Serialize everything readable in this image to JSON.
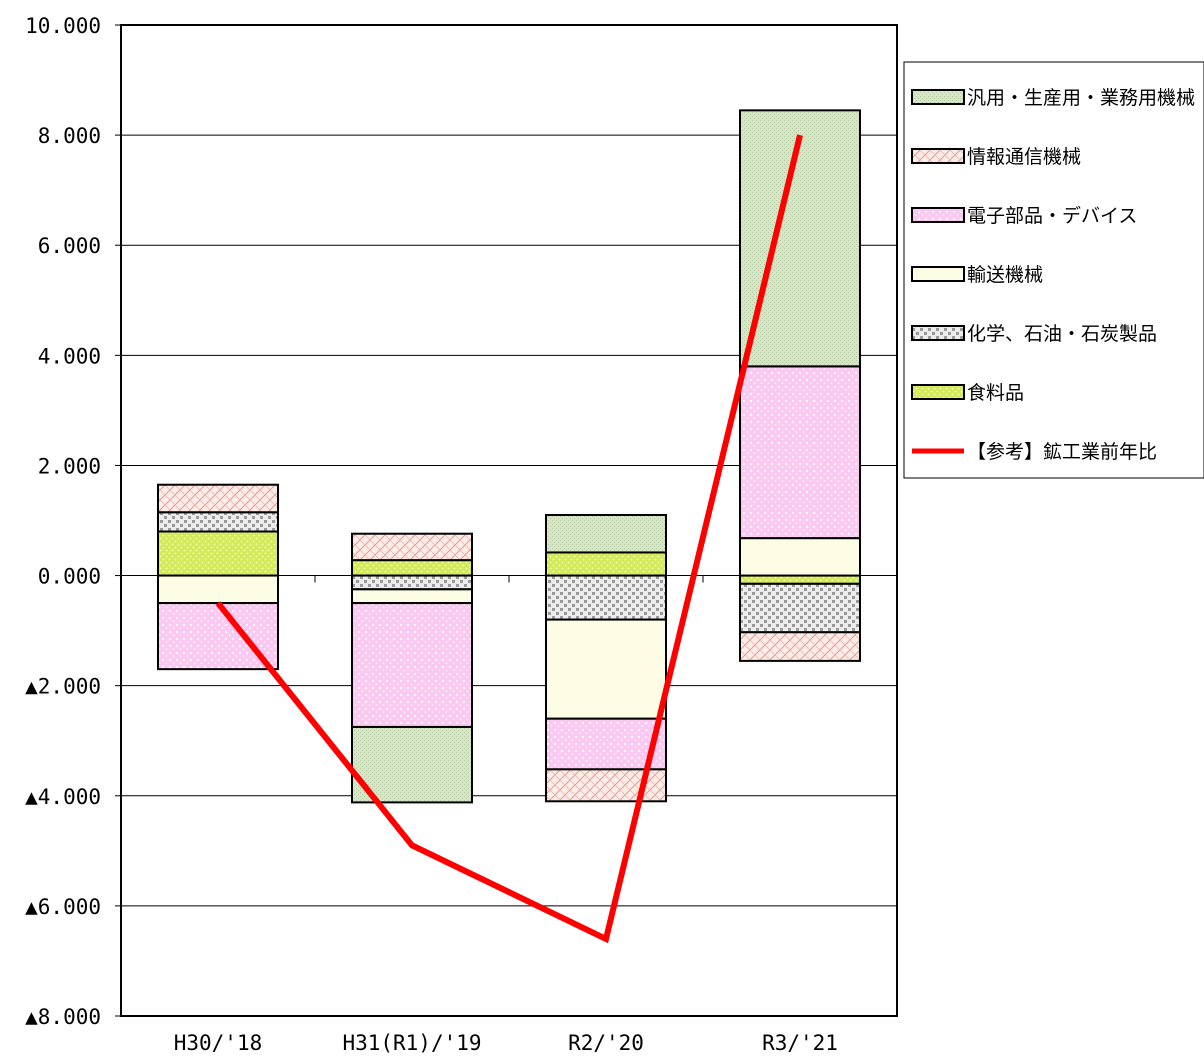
{
  "chart_data": {
    "type": "bar",
    "stacked": true,
    "title": "",
    "xlabel": "",
    "ylabel": "",
    "ylim": [
      -8,
      10
    ],
    "y_ticks": [
      10,
      8,
      6,
      4,
      2,
      0,
      -2,
      -4,
      -6,
      -8
    ],
    "y_tick_labels": [
      "10.000",
      "8.000",
      "6.000",
      "4.000",
      "2.000",
      "0.000",
      "▲2.000",
      "▲4.000",
      "▲6.000",
      "▲8.000"
    ],
    "grid": "horizontal",
    "legend_position": "right",
    "categories": [
      "H30/'18",
      "H31(R1)/'19",
      "R2/'20",
      "R3/'21"
    ],
    "series": [
      {
        "name": "食料品",
        "color": "#d4ea5c",
        "pattern": "dots",
        "values": [
          0.8,
          0.28,
          0.42,
          -0.15
        ]
      },
      {
        "name": "化学、石油・石炭製品",
        "color": "#d9d9d9",
        "pattern": "checker",
        "values": [
          0.35,
          -0.25,
          -0.8,
          -0.88
        ]
      },
      {
        "name": "輸送機械",
        "color": "#fdfde6",
        "pattern": "plain",
        "values": [
          -0.5,
          -0.25,
          -1.8,
          0.68
        ]
      },
      {
        "name": "電子部品・デバイス",
        "color": "#fbc8f2",
        "pattern": "dots",
        "values": [
          -1.2,
          -2.25,
          -0.92,
          3.12
        ]
      },
      {
        "name": "情報通信機械",
        "color": "#f6d2c6",
        "pattern": "hatch",
        "values": [
          0.5,
          0.48,
          -0.58,
          -0.52
        ]
      },
      {
        "name": "汎用・生産用・業務用機械",
        "color": "#d6e6c6",
        "pattern": "fine",
        "values": [
          0.0,
          -1.37,
          0.68,
          4.65
        ]
      }
    ],
    "line_series": {
      "name": "【参考】鉱工業前年比",
      "color": "#ff0000",
      "values": [
        -0.5,
        -4.9,
        -6.6,
        8.0
      ]
    },
    "legend_order": [
      "汎用・生産用・業務用機械",
      "情報通信機械",
      "電子部品・デバイス",
      "輸送機械",
      "化学、石油・石炭製品",
      "食料品",
      "【参考】鉱工業前年比"
    ]
  }
}
